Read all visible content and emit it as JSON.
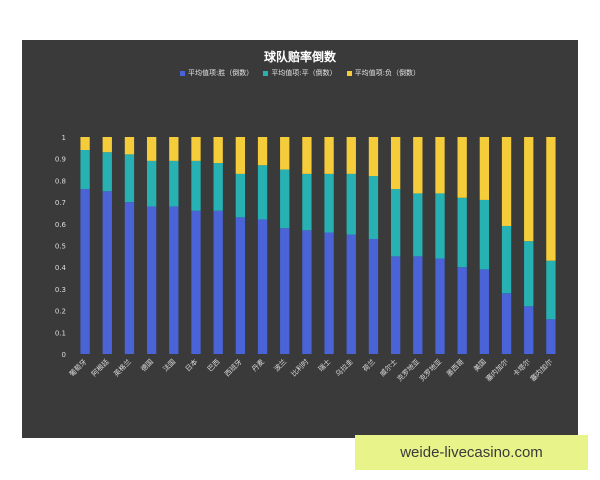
{
  "chart_data": {
    "type": "bar",
    "stacked": true,
    "title": "球队赔率倒数",
    "categories": [
      "葡萄牙",
      "阿根廷",
      "英格兰",
      "德国",
      "法国",
      "日本",
      "巴西",
      "西班牙",
      "丹麦",
      "波兰",
      "比利时",
      "瑞士",
      "乌拉圭",
      "荷兰",
      "威尔士",
      "克罗地亚",
      "克罗地亚",
      "墨西哥",
      "美国",
      "塞内加尔",
      "卡塔尔",
      "塞内加尔"
    ],
    "series": [
      {
        "name": "平均值项:胜（倒数）",
        "color": "#4a63d6",
        "values": [
          0.76,
          0.75,
          0.7,
          0.68,
          0.68,
          0.66,
          0.66,
          0.63,
          0.62,
          0.58,
          0.57,
          0.56,
          0.55,
          0.53,
          0.45,
          0.45,
          0.44,
          0.4,
          0.39,
          0.28,
          0.22,
          0.16
        ]
      },
      {
        "name": "平均值项:平（倒数）",
        "color": "#27b1b3",
        "values": [
          0.18,
          0.18,
          0.22,
          0.21,
          0.21,
          0.23,
          0.22,
          0.2,
          0.25,
          0.27,
          0.26,
          0.27,
          0.28,
          0.29,
          0.31,
          0.29,
          0.3,
          0.32,
          0.32,
          0.31,
          0.3,
          0.27
        ]
      },
      {
        "name": "平均值项:负（倒数）",
        "color": "#f5cc3a",
        "values": [
          0.06,
          0.07,
          0.08,
          0.11,
          0.11,
          0.11,
          0.12,
          0.17,
          0.13,
          0.15,
          0.17,
          0.17,
          0.17,
          0.18,
          0.24,
          0.26,
          0.26,
          0.28,
          0.29,
          0.41,
          0.48,
          0.57
        ]
      }
    ],
    "ylim": [
      0,
      1
    ],
    "yticks": [
      "0",
      "0.1",
      "0.2",
      "0.3",
      "0.4",
      "0.5",
      "0.6",
      "0.7",
      "0.8",
      "0.9",
      "1"
    ],
    "grid": false,
    "legend_position": "top"
  },
  "watermark": "weide-livecasino.com"
}
